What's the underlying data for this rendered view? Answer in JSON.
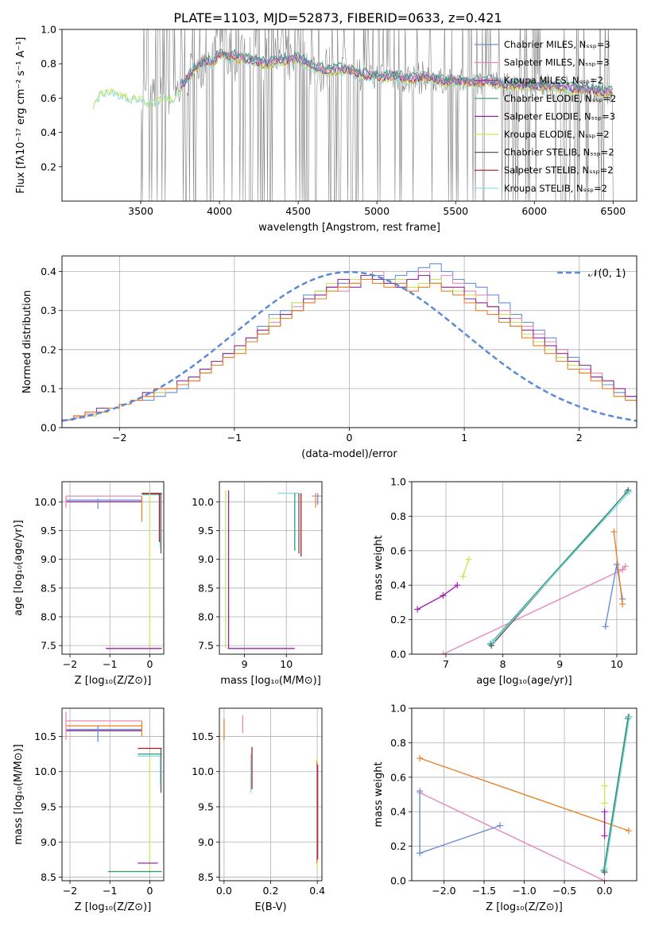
{
  "figure_title": "PLATE=1103, MJD=52873, FIBERID=0633, z=0.421",
  "legend_colors": {
    "Chabrier MILES": "#6a8fd8",
    "Salpeter MILES": "#e88ab9",
    "Kroupa MILES": "#8e2a9e",
    "Chabrier ELODIE": "#2f9a7a",
    "Salpeter ELODIE": "#a020b0",
    "Kroupa ELODIE": "#c8e85a",
    "Chabrier STELIB": "#5a5a5a",
    "Salpeter STELIB": "#b01818",
    "Kroupa STELIB": "#86d8e0",
    "orange_series": "#e8822a",
    "gray_data": "#808080"
  },
  "chart_data": [
    {
      "id": "spectrum",
      "type": "line",
      "xlabel": "wavelength [Angstrom, rest frame]",
      "ylabel": "Flux [fλ10⁻¹⁷ erg cm⁻² s⁻¹ A⁻¹]",
      "xlim": [
        3000,
        6650
      ],
      "ylim": [
        0.0,
        1.0
      ],
      "xticks": [
        3500,
        4000,
        4500,
        5000,
        5500,
        6000,
        6500
      ],
      "yticks": [
        0.2,
        0.4,
        0.6,
        0.8,
        1.0
      ],
      "grid": false,
      "legend_position": "upper right",
      "legend": [
        {
          "label": "Chabrier MILES, Nₛₛₚ=3",
          "color": "#6a8fd8"
        },
        {
          "label": "Salpeter MILES, Nₛₛₚ=3",
          "color": "#e88ab9"
        },
        {
          "label": "Kroupa MILES, Nₛₛₚ=2",
          "color": "#8e2a9e"
        },
        {
          "label": "Chabrier ELODIE, Nₛₛₚ=2",
          "color": "#2f9a7a"
        },
        {
          "label": "Salpeter ELODIE, Nₛₛₚ=3",
          "color": "#a020b0"
        },
        {
          "label": "Kroupa ELODIE, Nₛₛₚ=2",
          "color": "#c8e85a"
        },
        {
          "label": "Chabrier STELIB, Nₛₛₚ=2",
          "color": "#5a5a5a"
        },
        {
          "label": "Salpeter STELIB, Nₛₛₚ=2",
          "color": "#b01818"
        },
        {
          "label": "Kroupa STELIB, Nₛₛₚ=2",
          "color": "#86d8e0"
        }
      ],
      "model_continuum": {
        "x": [
          3200,
          3250,
          3300,
          3350,
          3400,
          3450,
          3500,
          3550,
          3600,
          3650,
          3700,
          3750,
          3800,
          3850,
          3900,
          3950,
          4000,
          4100,
          4200,
          4300,
          4400,
          4500,
          4600,
          4700,
          4800,
          4900,
          5000,
          5100,
          5200,
          5300,
          5400,
          5500,
          5600,
          5700,
          5800,
          5900,
          6000,
          6100,
          6200,
          6300,
          6400,
          6500
        ],
        "y": [
          0.58,
          0.64,
          0.66,
          0.63,
          0.62,
          0.61,
          0.6,
          0.58,
          0.59,
          0.62,
          0.6,
          0.66,
          0.72,
          0.78,
          0.82,
          0.8,
          0.86,
          0.84,
          0.82,
          0.8,
          0.82,
          0.83,
          0.78,
          0.76,
          0.77,
          0.74,
          0.72,
          0.73,
          0.71,
          0.72,
          0.7,
          0.7,
          0.69,
          0.7,
          0.68,
          0.68,
          0.67,
          0.67,
          0.66,
          0.65,
          0.64,
          0.63
        ]
      },
      "data_noise_start": 3500
    },
    {
      "id": "residuals",
      "type": "histogram",
      "xlabel": "(data-model)/error",
      "ylabel": "Normed distribution",
      "xlim": [
        -2.5,
        2.5
      ],
      "ylim": [
        0.0,
        0.44
      ],
      "xticks": [
        -2,
        -1,
        0,
        1,
        2
      ],
      "yticks": [
        0.0,
        0.1,
        0.2,
        0.3,
        0.4
      ],
      "grid": true,
      "legend_position": "upper right",
      "legend": [
        {
          "label": "𝒩(0, 1)",
          "color": "#5b8bd8",
          "style": "dashed"
        }
      ],
      "bin_width": 0.1,
      "series": [
        {
          "color": "#6a8fd8",
          "values": [
            0.02,
            0.03,
            0.03,
            0.04,
            0.05,
            0.06,
            0.07,
            0.07,
            0.08,
            0.09,
            0.1,
            0.12,
            0.14,
            0.17,
            0.19,
            0.2,
            0.23,
            0.26,
            0.29,
            0.3,
            0.32,
            0.34,
            0.35,
            0.36,
            0.37,
            0.38,
            0.39,
            0.39,
            0.38,
            0.39,
            0.4,
            0.41,
            0.42,
            0.4,
            0.38,
            0.37,
            0.36,
            0.34,
            0.32,
            0.29,
            0.27,
            0.25,
            0.23,
            0.2,
            0.18,
            0.15,
            0.13,
            0.11,
            0.09,
            0.07,
            0.06
          ]
        },
        {
          "color": "#e88ab9",
          "values": [
            0.02,
            0.025,
            0.035,
            0.04,
            0.05,
            0.06,
            0.07,
            0.08,
            0.09,
            0.1,
            0.11,
            0.12,
            0.15,
            0.16,
            0.18,
            0.2,
            0.22,
            0.24,
            0.27,
            0.28,
            0.31,
            0.32,
            0.34,
            0.36,
            0.35,
            0.37,
            0.38,
            0.4,
            0.37,
            0.36,
            0.38,
            0.4,
            0.38,
            0.39,
            0.37,
            0.35,
            0.34,
            0.31,
            0.3,
            0.28,
            0.26,
            0.24,
            0.22,
            0.2,
            0.17,
            0.15,
            0.14,
            0.12,
            0.1,
            0.08,
            0.06
          ]
        },
        {
          "color": "#c8e85a",
          "values": [
            0.02,
            0.03,
            0.03,
            0.04,
            0.05,
            0.06,
            0.07,
            0.08,
            0.09,
            0.1,
            0.11,
            0.13,
            0.14,
            0.16,
            0.19,
            0.2,
            0.22,
            0.25,
            0.28,
            0.29,
            0.32,
            0.33,
            0.35,
            0.37,
            0.36,
            0.38,
            0.39,
            0.38,
            0.37,
            0.38,
            0.36,
            0.37,
            0.38,
            0.36,
            0.35,
            0.34,
            0.32,
            0.31,
            0.29,
            0.27,
            0.24,
            0.22,
            0.2,
            0.18,
            0.16,
            0.14,
            0.12,
            0.1,
            0.08,
            0.07,
            0.06
          ]
        },
        {
          "color": "#8e2a9e",
          "values": [
            0.02,
            0.03,
            0.04,
            0.05,
            0.05,
            0.06,
            0.07,
            0.09,
            0.1,
            0.1,
            0.12,
            0.13,
            0.15,
            0.17,
            0.19,
            0.21,
            0.23,
            0.25,
            0.26,
            0.29,
            0.3,
            0.33,
            0.34,
            0.36,
            0.38,
            0.36,
            0.39,
            0.38,
            0.37,
            0.36,
            0.38,
            0.39,
            0.37,
            0.36,
            0.36,
            0.33,
            0.32,
            0.31,
            0.28,
            0.26,
            0.25,
            0.23,
            0.21,
            0.19,
            0.17,
            0.16,
            0.13,
            0.12,
            0.1,
            0.08,
            0.07
          ]
        },
        {
          "color": "#e8822a",
          "values": [
            0.02,
            0.03,
            0.04,
            0.04,
            0.05,
            0.06,
            0.07,
            0.08,
            0.1,
            0.1,
            0.11,
            0.12,
            0.14,
            0.16,
            0.18,
            0.19,
            0.22,
            0.24,
            0.26,
            0.28,
            0.3,
            0.32,
            0.33,
            0.35,
            0.36,
            0.37,
            0.38,
            0.37,
            0.36,
            0.37,
            0.35,
            0.36,
            0.37,
            0.35,
            0.34,
            0.32,
            0.3,
            0.29,
            0.27,
            0.26,
            0.23,
            0.21,
            0.19,
            0.17,
            0.15,
            0.14,
            0.12,
            0.1,
            0.08,
            0.07,
            0.05
          ]
        }
      ],
      "gaussian": {
        "mu": 0,
        "sigma": 1
      }
    },
    {
      "id": "age-vs-Z",
      "type": "scatter",
      "xlabel": "Z [log₁₀(Z/Z⊙)]",
      "ylabel": "age  [log₁₀(age/yr)]",
      "xlim": [
        -2.2,
        0.35
      ],
      "ylim": [
        7.35,
        10.35
      ],
      "xticks": [
        -2,
        -1,
        0
      ],
      "yticks": [
        7.5,
        8.0,
        8.5,
        9.0,
        9.5,
        10.0
      ],
      "grid": true
    },
    {
      "id": "age-vs-mass",
      "type": "scatter",
      "xlabel": "mass [log₁₀(M/M⊙)]",
      "xlim": [
        8.4,
        10.85
      ],
      "ylim": [
        7.35,
        10.35
      ],
      "xticks": [
        9,
        10
      ],
      "yticks": [
        7.5,
        8.0,
        8.5,
        9.0,
        9.5,
        10.0
      ],
      "grid": true
    },
    {
      "id": "massweight-vs-age",
      "type": "line",
      "xlabel": "age  [log₁₀(age/yr)]",
      "ylabel": "mass weight",
      "xlim": [
        6.4,
        10.35
      ],
      "ylim": [
        0.0,
        1.0
      ],
      "xticks": [
        7,
        8,
        9,
        10
      ],
      "yticks": [
        0.0,
        0.2,
        0.4,
        0.6,
        0.8,
        1.0
      ],
      "grid": true,
      "series": [
        {
          "color": "#a020b0",
          "x": [
            6.5,
            6.95,
            7.2
          ],
          "y": [
            0.26,
            0.34,
            0.4
          ]
        },
        {
          "color": "#c8e85a",
          "x": [
            7.3,
            7.4
          ],
          "y": [
            0.45,
            0.55
          ]
        },
        {
          "color": "#e88ab9",
          "x": [
            6.95,
            10.1
          ],
          "y": [
            0.0,
            0.49
          ]
        },
        {
          "color": "#e88ab9",
          "x": [
            10.1,
            10.15
          ],
          "y": [
            0.49,
            0.51
          ]
        },
        {
          "color": "#6a8fd8",
          "x": [
            9.8,
            10.0,
            10.1
          ],
          "y": [
            0.16,
            0.52,
            0.32
          ]
        },
        {
          "color": "#e8822a",
          "x": [
            9.95,
            10.1
          ],
          "y": [
            0.71,
            0.29
          ]
        },
        {
          "color": "#5a5a5a",
          "x": [
            7.8,
            10.2
          ],
          "y": [
            0.05,
            0.95
          ]
        },
        {
          "color": "#2f9a7a",
          "x": [
            7.78,
            10.18
          ],
          "y": [
            0.06,
            0.94
          ]
        },
        {
          "color": "#86d8e0",
          "x": [
            7.82,
            10.22
          ],
          "y": [
            0.07,
            0.94
          ]
        }
      ]
    },
    {
      "id": "mass-vs-Z",
      "type": "scatter",
      "xlabel": "Z [log₁₀(Z/Z⊙)]",
      "ylabel": "mass [log₁₀(M/M⊙)]",
      "xlim": [
        -2.2,
        0.35
      ],
      "ylim": [
        8.45,
        10.9
      ],
      "xticks": [
        -2,
        -1,
        0
      ],
      "yticks": [
        8.5,
        9.0,
        9.5,
        10.0,
        10.5
      ],
      "grid": true
    },
    {
      "id": "mass-vs-EBV",
      "type": "scatter",
      "xlabel": "E(B-V)",
      "xlim": [
        -0.02,
        0.42
      ],
      "ylim": [
        8.45,
        10.9
      ],
      "xticks": [
        0.0,
        0.2,
        0.4
      ],
      "yticks": [
        8.5,
        9.0,
        9.5,
        10.0,
        10.5
      ],
      "grid": true
    },
    {
      "id": "massweight-vs-Z",
      "type": "line",
      "xlabel": "Z [log₁₀(Z/Z⊙)]",
      "ylabel": "mass weight",
      "xlim": [
        -2.4,
        0.4
      ],
      "ylim": [
        0.0,
        1.0
      ],
      "xticks": [
        -2.0,
        -1.5,
        -1.0,
        -0.5,
        0.0
      ],
      "yticks": [
        0.0,
        0.2,
        0.4,
        0.6,
        0.8,
        1.0
      ],
      "grid": true,
      "series": [
        {
          "color": "#e8822a",
          "x": [
            -2.3,
            0.3
          ],
          "y": [
            0.71,
            0.29
          ]
        },
        {
          "color": "#e88ab9",
          "x": [
            -2.3,
            0.0
          ],
          "y": [
            0.51,
            0.0
          ]
        },
        {
          "color": "#6a8fd8",
          "x": [
            -2.3,
            -2.3,
            -1.3
          ],
          "y": [
            0.52,
            0.16,
            0.32
          ]
        },
        {
          "color": "#a020b0",
          "x": [
            0.0,
            0.0
          ],
          "y": [
            0.26,
            0.4
          ]
        },
        {
          "color": "#c8e85a",
          "x": [
            0.0,
            0.0
          ],
          "y": [
            0.45,
            0.55
          ]
        },
        {
          "color": "#5a5a5a",
          "x": [
            0.0,
            0.3
          ],
          "y": [
            0.05,
            0.95
          ]
        },
        {
          "color": "#2f9a7a",
          "x": [
            -0.01,
            0.29
          ],
          "y": [
            0.06,
            0.94
          ]
        },
        {
          "color": "#86d8e0",
          "x": [
            0.01,
            0.31
          ],
          "y": [
            0.07,
            0.95
          ]
        }
      ]
    }
  ]
}
